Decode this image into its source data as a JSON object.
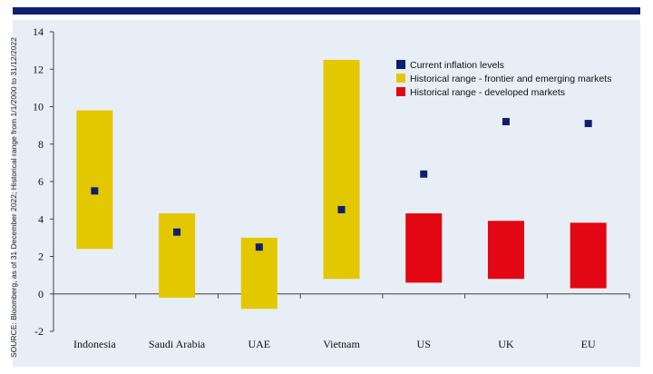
{
  "source_note": "SOURCE: Bloomberg, as of 31 December 2022; Historical range from 1/1/2000 to 31/12/2022",
  "colors": {
    "accent_rule": "#0d1f6e",
    "panel_bg": "#e7eef6",
    "emerging": "#e3c800",
    "developed": "#e30613",
    "current": "#0d1f6e"
  },
  "chart_data": {
    "type": "bar",
    "subtype": "floating-range-with-markers",
    "categories": [
      "Indonesia",
      "Saudi Arabia",
      "UAE",
      "Vietnam",
      "US",
      "UK",
      "EU"
    ],
    "ylim": [
      -2,
      14
    ],
    "yticks": [
      14,
      12,
      10,
      8,
      6,
      4,
      2,
      0,
      -2
    ],
    "grid": false,
    "legend_position": "top-right",
    "series": [
      {
        "name": "Historical range - frontier and emerging markets",
        "color": "#e3c800",
        "ranges": [
          [
            2.4,
            9.8
          ],
          [
            -0.2,
            4.3
          ],
          [
            -0.8,
            3.0
          ],
          [
            0.8,
            12.5
          ],
          null,
          null,
          null
        ]
      },
      {
        "name": "Historical range - developed markets",
        "color": "#e30613",
        "ranges": [
          null,
          null,
          null,
          null,
          [
            0.6,
            4.3
          ],
          [
            0.8,
            3.9
          ],
          [
            0.3,
            3.8
          ]
        ]
      },
      {
        "name": "Current inflation levels",
        "color": "#0d1f6e",
        "values": [
          5.5,
          3.3,
          2.5,
          4.5,
          6.4,
          9.2,
          9.1
        ]
      }
    ],
    "legend": [
      {
        "label": "Current inflation levels",
        "color": "#0d1f6e"
      },
      {
        "label": "Historical range - frontier and emerging markets",
        "color": "#e3c800"
      },
      {
        "label": "Historical range - developed markets",
        "color": "#e30613"
      }
    ]
  }
}
